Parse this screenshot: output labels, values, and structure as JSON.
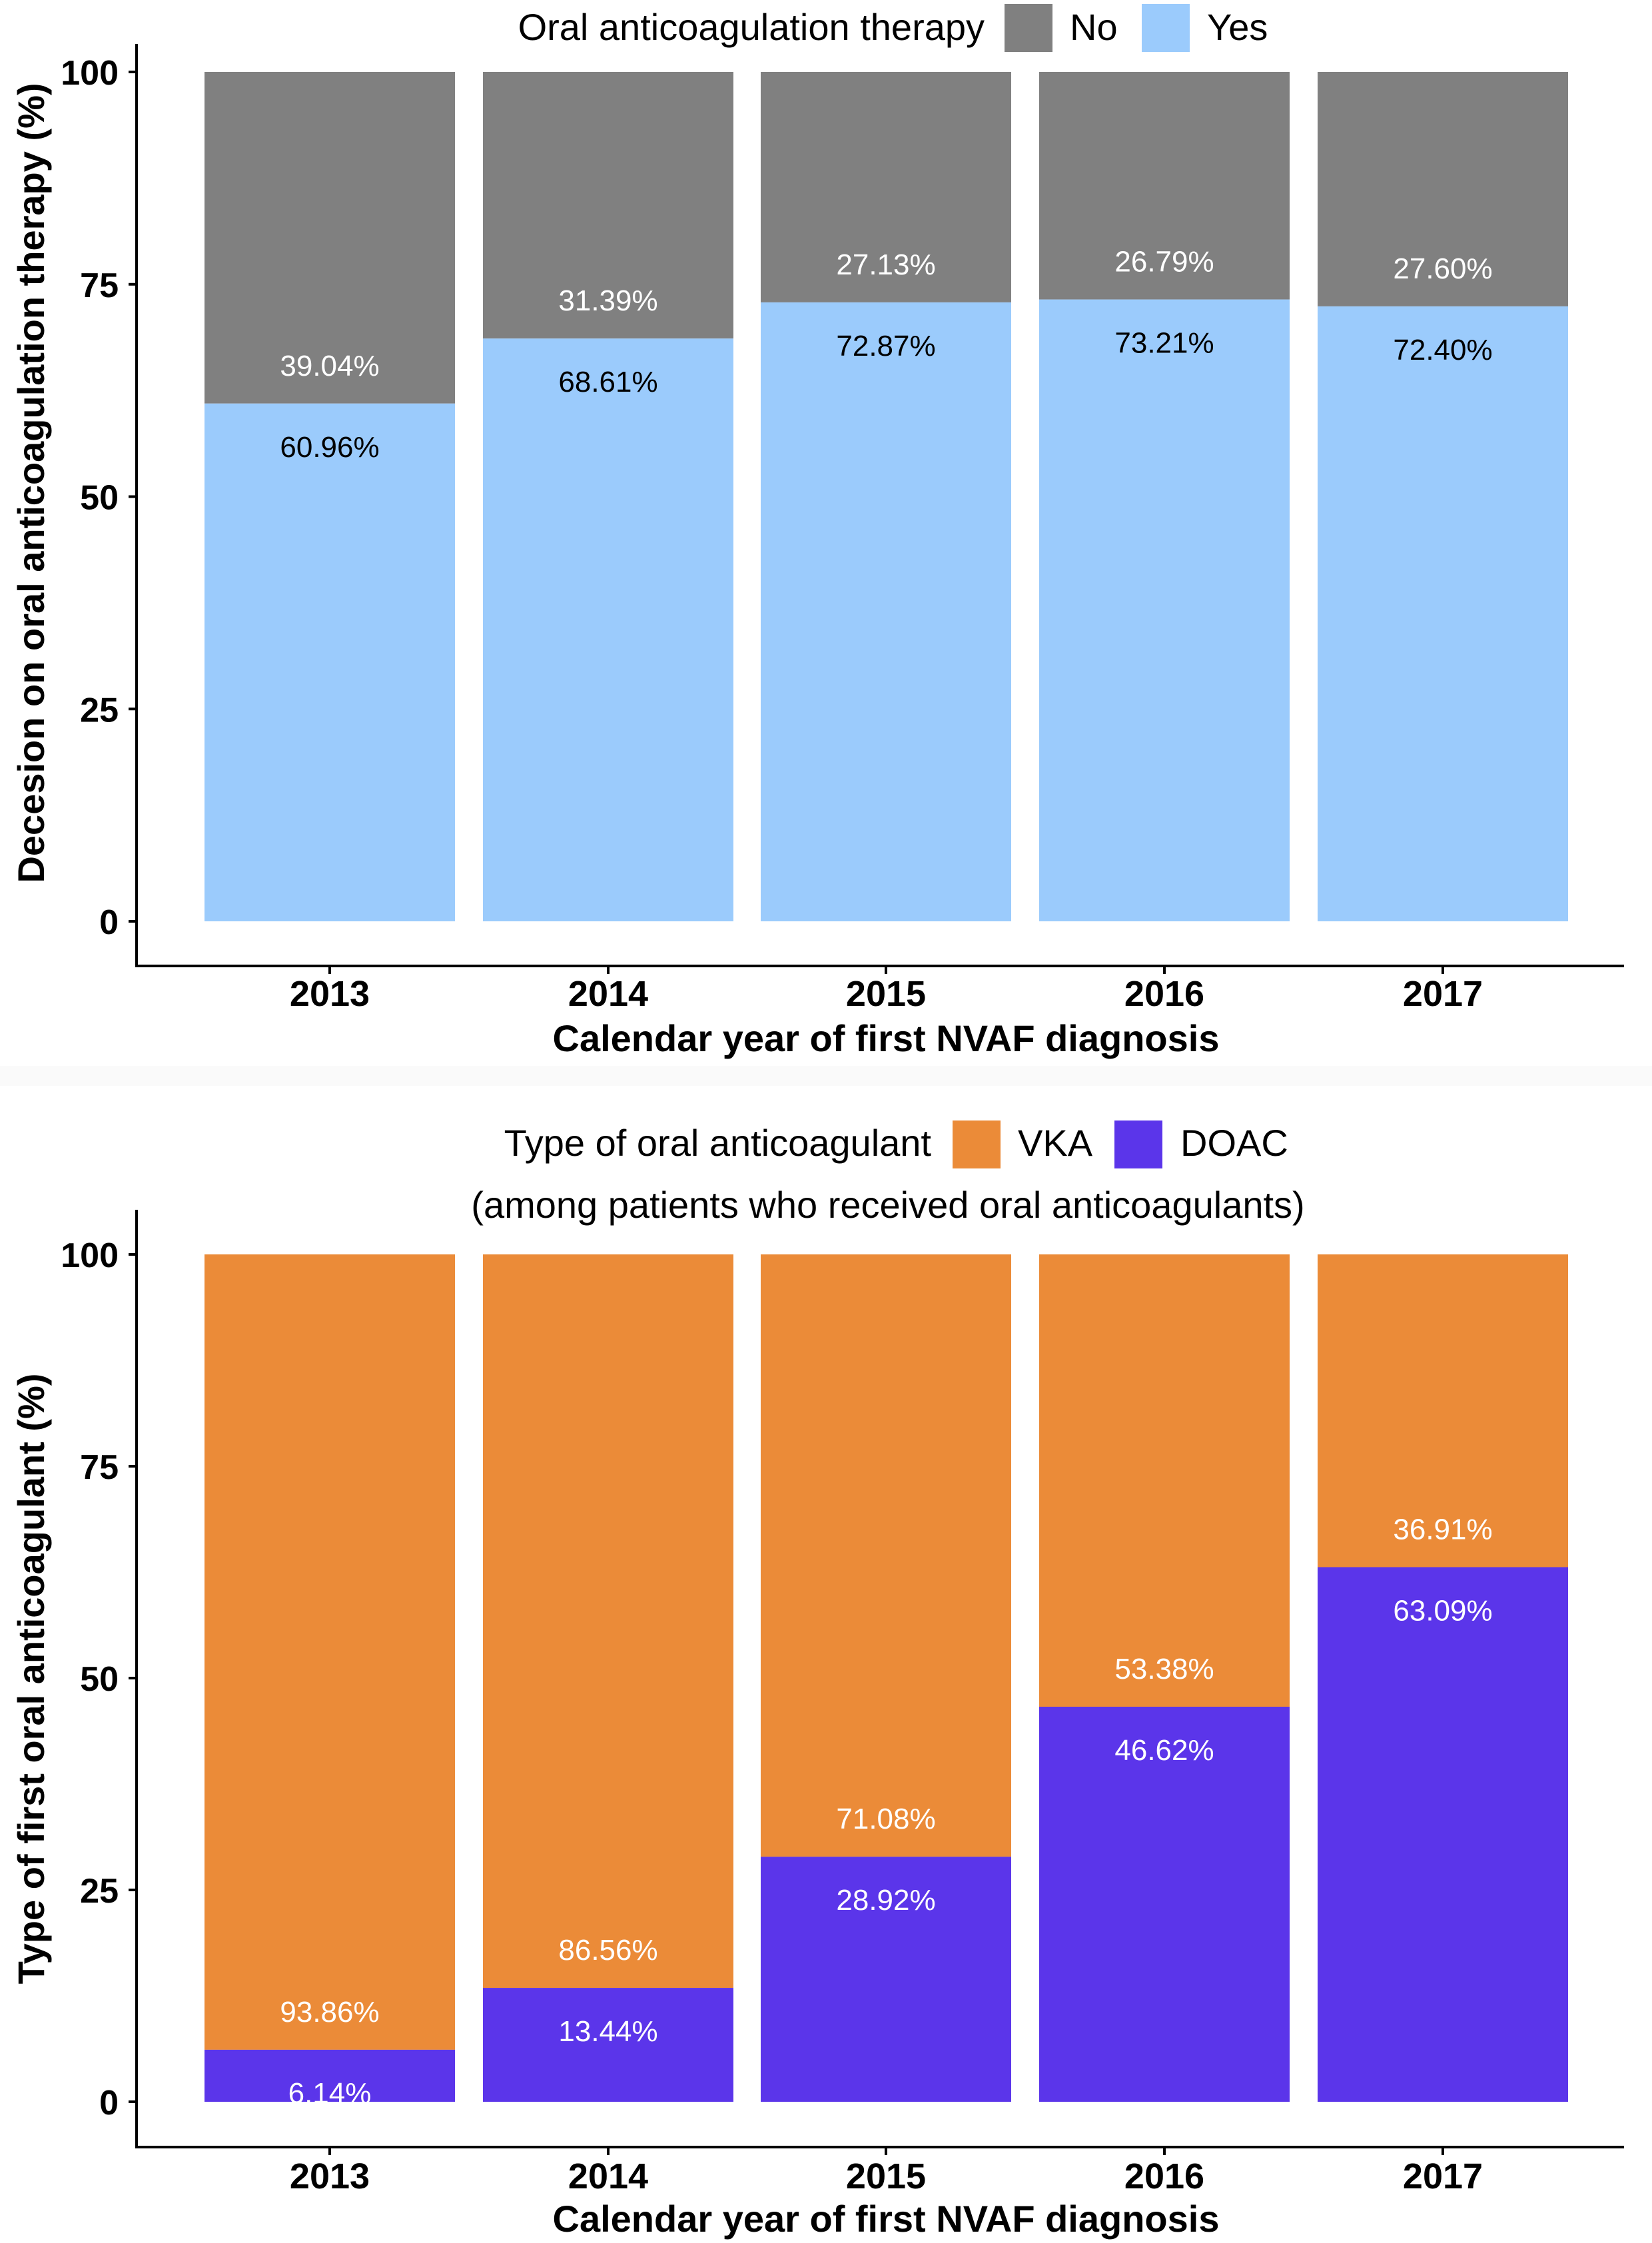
{
  "charts": [
    {
      "legend_title": "Oral anticoagulation therapy",
      "legend_subtitle": "",
      "legend_items": [
        {
          "label": "No",
          "color": "#808080"
        },
        {
          "label": "Yes",
          "color": "#9BCBFC"
        }
      ],
      "ylabel": "Decesion on oral anticoagulation therapy (%)",
      "xlabel": "Calendar year of first NVAF diagnosis",
      "yticks": [
        "0",
        "25",
        "50",
        "75",
        "100"
      ],
      "categories": [
        "2013",
        "2014",
        "2015",
        "2016",
        "2017"
      ],
      "labels_bottom": [
        "60.96%",
        "68.61%",
        "72.87%",
        "73.21%",
        "72.40%"
      ],
      "labels_top": [
        "39.04%",
        "31.39%",
        "27.13%",
        "26.79%",
        "27.60%"
      ]
    },
    {
      "legend_title": "Type of oral anticoagulant",
      "legend_subtitle": "(among patients who received oral anticoagulants)",
      "legend_items": [
        {
          "label": "VKA",
          "color": "#EB8B38"
        },
        {
          "label": "DOAC",
          "color": "#5B35EA"
        }
      ],
      "ylabel": "Type of first oral anticoagulant (%)",
      "xlabel": "Calendar year of first NVAF diagnosis",
      "yticks": [
        "0",
        "25",
        "50",
        "75",
        "100"
      ],
      "categories": [
        "2013",
        "2014",
        "2015",
        "2016",
        "2017"
      ],
      "labels_bottom": [
        "6.14%",
        "13.44%",
        "28.92%",
        "46.62%",
        "63.09%"
      ],
      "labels_top": [
        "93.86%",
        "86.56%",
        "71.08%",
        "53.38%",
        "36.91%"
      ]
    }
  ],
  "chart_data": [
    {
      "type": "bar",
      "stacked": true,
      "categories": [
        "2013",
        "2014",
        "2015",
        "2016",
        "2017"
      ],
      "series": [
        {
          "name": "Yes",
          "color": "#9BCBFC",
          "values": [
            60.96,
            68.61,
            72.87,
            73.21,
            72.4
          ]
        },
        {
          "name": "No",
          "color": "#808080",
          "values": [
            39.04,
            31.39,
            27.13,
            26.79,
            27.6
          ]
        }
      ],
      "title": "",
      "xlabel": "Calendar year of first NVAF diagnosis",
      "ylabel": "Decesion on oral anticoagulation therapy (%)",
      "ylim": [
        0,
        100
      ],
      "yticks": [
        0,
        25,
        50,
        75,
        100
      ],
      "grid": false,
      "legend_position": "top"
    },
    {
      "type": "bar",
      "stacked": true,
      "categories": [
        "2013",
        "2014",
        "2015",
        "2016",
        "2017"
      ],
      "series": [
        {
          "name": "DOAC",
          "color": "#5B35EA",
          "values": [
            6.14,
            13.44,
            28.92,
            46.62,
            63.09
          ]
        },
        {
          "name": "VKA",
          "color": "#EB8B38",
          "values": [
            93.86,
            86.56,
            71.08,
            53.38,
            36.91
          ]
        }
      ],
      "title": "",
      "xlabel": "Calendar year of first NVAF diagnosis",
      "ylabel": "Type of first oral anticoagulant (%)",
      "ylim": [
        0,
        100
      ],
      "yticks": [
        0,
        25,
        50,
        75,
        100
      ],
      "grid": false,
      "legend_position": "top"
    }
  ]
}
